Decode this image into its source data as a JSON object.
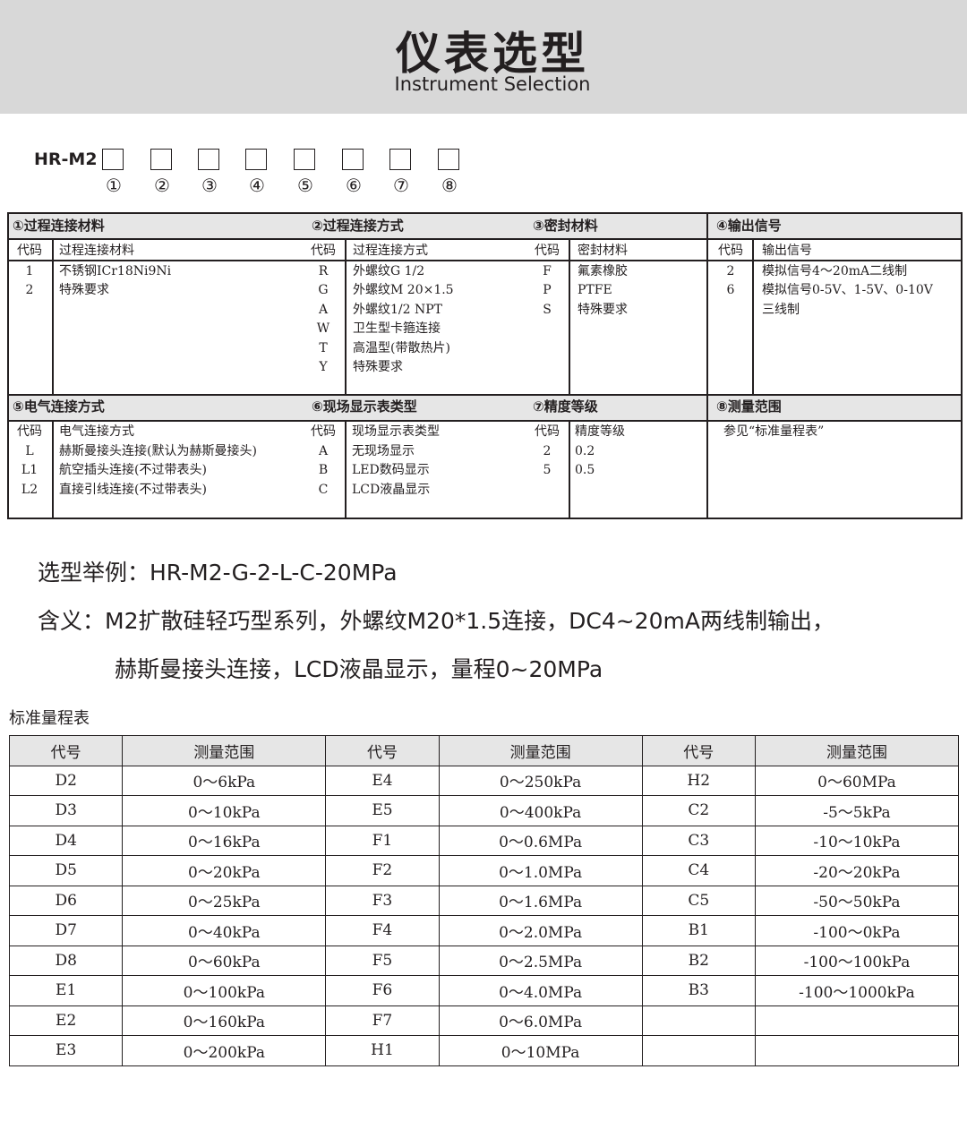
{
  "header": {
    "title": "仪表选型",
    "subtitle": "Instrument Selection"
  },
  "model": {
    "prefix": "HR-M2",
    "positions": [
      "①",
      "②",
      "③",
      "④",
      "⑤",
      "⑥",
      "⑦",
      "⑧"
    ]
  },
  "groups": [
    {
      "title": "①过程连接材料",
      "code_header": "代码",
      "desc_header": "过程连接材料",
      "rows": [
        [
          "1",
          "不锈钢ICr18Ni9Ni"
        ],
        [
          "2",
          "特殊要求"
        ]
      ]
    },
    {
      "title": "②过程连接方式",
      "code_header": "代码",
      "desc_header": "过程连接方式",
      "rows": [
        [
          "R",
          "外螺纹G 1/2"
        ],
        [
          "G",
          "外螺纹M 20×1.5"
        ],
        [
          "A",
          "外螺纹1/2 NPT"
        ],
        [
          "W",
          "卫生型卡箍连接"
        ],
        [
          "T",
          "高温型(带散热片)"
        ],
        [
          "Y",
          "特殊要求"
        ]
      ]
    },
    {
      "title": "③密封材料",
      "code_header": "代码",
      "desc_header": "密封材料",
      "rows": [
        [
          "F",
          "氟素橡胶"
        ],
        [
          "P",
          "PTFE"
        ],
        [
          "S",
          "特殊要求"
        ]
      ]
    },
    {
      "title": "④输出信号",
      "code_header": "代码",
      "desc_header": "输出信号",
      "rows": [
        [
          "2",
          "模拟信号4～20mA二线制"
        ],
        [
          "6",
          "模拟信号0-5V、1-5V、0-10V"
        ],
        [
          "",
          "三线制"
        ]
      ]
    },
    {
      "title": "⑤电气连接方式",
      "code_header": "代码",
      "desc_header": "电气连接方式",
      "rows": [
        [
          "L",
          "赫斯曼接头连接(默认为赫斯曼接头)"
        ],
        [
          "L1",
          "航空插头连接(不过带表头)"
        ],
        [
          "L2",
          "直接引线连接(不过带表头)"
        ]
      ]
    },
    {
      "title": "⑥现场显示表类型",
      "code_header": "代码",
      "desc_header": "现场显示表类型",
      "rows": [
        [
          "A",
          "无现场显示"
        ],
        [
          "B",
          "LED数码显示"
        ],
        [
          "C",
          "LCD液晶显示"
        ]
      ]
    },
    {
      "title": "⑦精度等级",
      "code_header": "代码",
      "desc_header": "精度等级",
      "rows": [
        [
          "2",
          "0.2"
        ],
        [
          "5",
          "0.5"
        ]
      ]
    },
    {
      "title": "⑧测量范围",
      "note": "参见“标准量程表”"
    }
  ],
  "example": {
    "line1": "选型举例：HR-M2-G-2-L-C-20MPa",
    "line2": "含义：M2扩散硅轻巧型系列，外螺纹M20*1.5连接，DC4~20mA两线制输出，",
    "line3": "赫斯曼接头连接，LCD液晶显示，量程0~20MPa"
  },
  "range_table": {
    "title": "标准量程表",
    "headers": [
      "代号",
      "测量范围",
      "代号",
      "测量范围",
      "代号",
      "测量范围"
    ],
    "rows": [
      [
        "D2",
        "0～6kPa",
        "E4",
        "0～250kPa",
        "H2",
        "0～60MPa"
      ],
      [
        "D3",
        "0～10kPa",
        "E5",
        "0～400kPa",
        "C2",
        "-5～5kPa"
      ],
      [
        "D4",
        "0～16kPa",
        "F1",
        "0～0.6MPa",
        "C3",
        "-10～10kPa"
      ],
      [
        "D5",
        "0～20kPa",
        "F2",
        "0～1.0MPa",
        "C4",
        "-20～20kPa"
      ],
      [
        "D6",
        "0～25kPa",
        "F3",
        "0～1.6MPa",
        "C5",
        "-50～50kPa"
      ],
      [
        "D7",
        "0～40kPa",
        "F4",
        "0～2.0MPa",
        "B1",
        "-100～0kPa"
      ],
      [
        "D8",
        "0～60kPa",
        "F5",
        "0～2.5MPa",
        "B2",
        "-100～100kPa"
      ],
      [
        "E1",
        "0～100kPa",
        "F6",
        "0～4.0MPa",
        "B3",
        "-100～1000kPa"
      ],
      [
        "E2",
        "0～160kPa",
        "F7",
        "0～6.0MPa",
        "",
        ""
      ],
      [
        "E3",
        "0～200kPa",
        "H1",
        "0～10MPa",
        "",
        ""
      ]
    ]
  }
}
